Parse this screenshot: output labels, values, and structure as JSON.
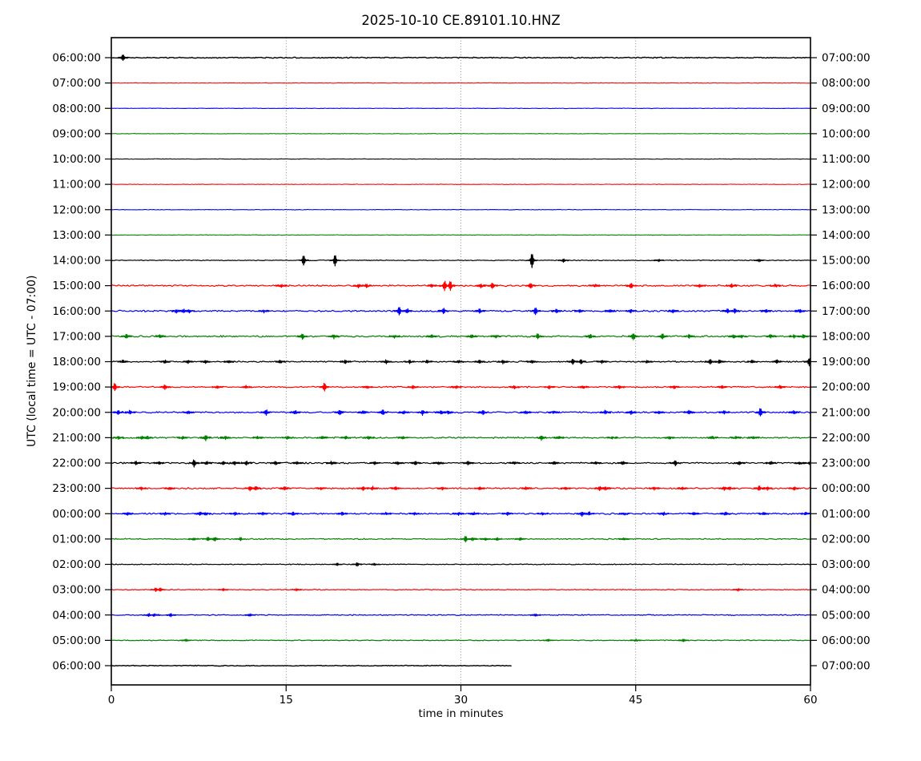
{
  "window": {
    "title": "2025-10-10 CE.89101.10.HNZ"
  },
  "chart_data": {
    "type": "line",
    "subtype": "helicorder-seismogram",
    "title": "2025-10-10 CE.89101.10.HNZ",
    "xlabel": "time in minutes",
    "ylabel": "UTC (local time = UTC - 07:00)",
    "xlim": [
      0,
      60
    ],
    "x_ticks": [
      0,
      15,
      30,
      45,
      60
    ],
    "grid_x_minutes": [
      15,
      30,
      45
    ],
    "grid_style": "dotted-vertical",
    "legend": "none",
    "colors": {
      "k": "#000000",
      "r": "#ff0000",
      "b": "#0000ff",
      "g": "#008000"
    },
    "rows_note": "25 hourly traces, one hour per line, color cycle black/red/blue/green; events = [minute, half-amplitude-px]",
    "rows": [
      {
        "left_label": "06:00:00",
        "right_label": "07:00:00",
        "color": "k",
        "noise": 0.55,
        "width": 1.4,
        "end": 60,
        "events": [
          [
            1.0,
            3.0
          ]
        ]
      },
      {
        "left_label": "07:00:00",
        "right_label": "08:00:00",
        "color": "r",
        "noise": 0.25,
        "width": 1.1,
        "end": 60,
        "events": []
      },
      {
        "left_label": "08:00:00",
        "right_label": "09:00:00",
        "color": "b",
        "noise": 0.25,
        "width": 1.1,
        "end": 60,
        "events": []
      },
      {
        "left_label": "09:00:00",
        "right_label": "10:00:00",
        "color": "g",
        "noise": 0.25,
        "width": 1.1,
        "end": 60,
        "events": []
      },
      {
        "left_label": "10:00:00",
        "right_label": "11:00:00",
        "color": "k",
        "noise": 0.25,
        "width": 1.1,
        "end": 60,
        "events": []
      },
      {
        "left_label": "11:00:00",
        "right_label": "12:00:00",
        "color": "r",
        "noise": 0.25,
        "width": 1.1,
        "end": 60,
        "events": []
      },
      {
        "left_label": "12:00:00",
        "right_label": "13:00:00",
        "color": "b",
        "noise": 0.25,
        "width": 1.1,
        "end": 60,
        "events": []
      },
      {
        "left_label": "13:00:00",
        "right_label": "14:00:00",
        "color": "g",
        "noise": 0.25,
        "width": 1.1,
        "end": 60,
        "events": []
      },
      {
        "left_label": "14:00:00",
        "right_label": "15:00:00",
        "color": "k",
        "noise": 0.45,
        "width": 1.2,
        "end": 60,
        "events": [
          [
            16.5,
            6.0
          ],
          [
            19.2,
            6.5
          ],
          [
            36.1,
            9.0
          ],
          [
            38.8,
            2.0
          ],
          [
            47.0,
            1.2
          ],
          [
            55.6,
            1.5
          ]
        ]
      },
      {
        "left_label": "15:00:00",
        "right_label": "16:00:00",
        "color": "r",
        "noise": 0.8,
        "width": 1.2,
        "end": 60,
        "events": [
          [
            14.6,
            1.5
          ],
          [
            21.2,
            2.0
          ],
          [
            21.9,
            2.0
          ],
          [
            27.5,
            1.5
          ],
          [
            28.6,
            5.5
          ],
          [
            29.1,
            5.5
          ],
          [
            31.7,
            2.2
          ],
          [
            32.7,
            3.0
          ],
          [
            36.0,
            3.0
          ],
          [
            41.5,
            1.5
          ],
          [
            44.6,
            3.2
          ],
          [
            50.5,
            1.5
          ],
          [
            53.2,
            2.0
          ],
          [
            57.0,
            1.5
          ]
        ]
      },
      {
        "left_label": "16:00:00",
        "right_label": "17:00:00",
        "color": "b",
        "noise": 0.8,
        "width": 1.2,
        "end": 60,
        "events": [
          [
            5.6,
            2.2
          ],
          [
            6.2,
            2.2
          ],
          [
            6.7,
            1.8
          ],
          [
            13.1,
            1.6
          ],
          [
            24.7,
            4.5
          ],
          [
            25.4,
            2.5
          ],
          [
            28.5,
            3.0
          ],
          [
            31.6,
            2.2
          ],
          [
            36.4,
            4.0
          ],
          [
            38.2,
            1.8
          ],
          [
            40.2,
            1.6
          ],
          [
            42.8,
            1.6
          ],
          [
            44.6,
            2.0
          ],
          [
            48.2,
            1.6
          ],
          [
            52.9,
            2.6
          ],
          [
            53.5,
            2.4
          ],
          [
            56.2,
            1.6
          ],
          [
            59.1,
            1.8
          ]
        ]
      },
      {
        "left_label": "17:00:00",
        "right_label": "18:00:00",
        "color": "g",
        "noise": 0.8,
        "width": 1.2,
        "end": 60,
        "events": [
          [
            1.3,
            2.4
          ],
          [
            4.2,
            1.6
          ],
          [
            16.4,
            3.0
          ],
          [
            19.1,
            2.6
          ],
          [
            24.3,
            1.6
          ],
          [
            27.5,
            1.4
          ],
          [
            30.9,
            1.6
          ],
          [
            33.0,
            1.4
          ],
          [
            36.6,
            2.6
          ],
          [
            41.1,
            2.4
          ],
          [
            44.8,
            3.8
          ],
          [
            47.3,
            3.6
          ],
          [
            49.6,
            2.0
          ],
          [
            53.4,
            2.0
          ],
          [
            54.1,
            1.8
          ],
          [
            56.6,
            2.0
          ],
          [
            58.6,
            1.6
          ],
          [
            59.4,
            2.0
          ]
        ]
      },
      {
        "left_label": "18:00:00",
        "right_label": "19:00:00",
        "color": "k",
        "noise": 0.7,
        "width": 1.2,
        "end": 60,
        "events": [
          [
            1.0,
            1.5
          ],
          [
            4.6,
            2.0
          ],
          [
            6.6,
            2.0
          ],
          [
            8.1,
            1.6
          ],
          [
            10.1,
            1.4
          ],
          [
            14.5,
            1.6
          ],
          [
            20.1,
            1.8
          ],
          [
            23.6,
            2.0
          ],
          [
            25.6,
            1.6
          ],
          [
            27.1,
            1.6
          ],
          [
            29.8,
            1.4
          ],
          [
            31.6,
            1.5
          ],
          [
            33.6,
            2.0
          ],
          [
            36.1,
            1.8
          ],
          [
            39.6,
            2.8
          ],
          [
            40.3,
            2.8
          ],
          [
            42.1,
            1.6
          ],
          [
            46.0,
            1.4
          ],
          [
            51.4,
            3.2
          ],
          [
            52.2,
            2.0
          ],
          [
            55.0,
            1.4
          ],
          [
            57.1,
            1.8
          ],
          [
            59.9,
            4.5
          ]
        ]
      },
      {
        "left_label": "19:00:00",
        "right_label": "20:00:00",
        "color": "r",
        "noise": 0.7,
        "width": 1.2,
        "end": 60,
        "events": [
          [
            0.3,
            4.5
          ],
          [
            4.6,
            2.8
          ],
          [
            9.1,
            1.6
          ],
          [
            11.6,
            1.5
          ],
          [
            18.3,
            4.5
          ],
          [
            22.0,
            1.4
          ],
          [
            25.9,
            2.0
          ],
          [
            29.6,
            1.5
          ],
          [
            34.6,
            1.5
          ],
          [
            37.6,
            1.8
          ],
          [
            40.5,
            1.4
          ],
          [
            43.6,
            1.8
          ],
          [
            48.3,
            1.8
          ],
          [
            52.4,
            1.4
          ],
          [
            57.4,
            1.8
          ]
        ]
      },
      {
        "left_label": "20:00:00",
        "right_label": "21:00:00",
        "color": "b",
        "noise": 0.8,
        "width": 1.2,
        "end": 60,
        "events": [
          [
            0.6,
            2.0
          ],
          [
            1.6,
            2.0
          ],
          [
            6.6,
            1.5
          ],
          [
            13.3,
            2.8
          ],
          [
            15.8,
            2.0
          ],
          [
            19.6,
            2.8
          ],
          [
            21.6,
            1.5
          ],
          [
            23.3,
            3.2
          ],
          [
            25.1,
            1.5
          ],
          [
            26.7,
            3.2
          ],
          [
            28.3,
            2.0
          ],
          [
            28.9,
            1.8
          ],
          [
            31.9,
            2.8
          ],
          [
            35.6,
            1.5
          ],
          [
            38.0,
            1.4
          ],
          [
            42.4,
            2.0
          ],
          [
            44.6,
            1.8
          ],
          [
            47.0,
            1.4
          ],
          [
            49.6,
            1.8
          ],
          [
            52.6,
            1.8
          ],
          [
            55.7,
            4.8
          ],
          [
            58.6,
            1.5
          ]
        ]
      },
      {
        "left_label": "21:00:00",
        "right_label": "22:00:00",
        "color": "g",
        "noise": 0.75,
        "width": 1.2,
        "end": 60,
        "events": [
          [
            0.6,
            1.8
          ],
          [
            2.6,
            1.4
          ],
          [
            3.1,
            1.4
          ],
          [
            6.1,
            1.5
          ],
          [
            8.1,
            3.2
          ],
          [
            9.8,
            1.8
          ],
          [
            12.6,
            1.5
          ],
          [
            15.1,
            1.4
          ],
          [
            18.1,
            1.4
          ],
          [
            20.1,
            1.8
          ],
          [
            22.1,
            1.4
          ],
          [
            25.0,
            1.2
          ],
          [
            36.9,
            2.8
          ],
          [
            38.4,
            1.5
          ],
          [
            43.0,
            1.2
          ],
          [
            47.9,
            1.5
          ],
          [
            51.6,
            1.4
          ],
          [
            53.6,
            1.4
          ],
          [
            55.1,
            1.4
          ]
        ]
      },
      {
        "left_label": "22:00:00",
        "right_label": "23:00:00",
        "color": "k",
        "noise": 0.75,
        "width": 1.2,
        "end": 60,
        "events": [
          [
            2.1,
            1.5
          ],
          [
            4.1,
            1.4
          ],
          [
            7.1,
            4.2
          ],
          [
            8.2,
            1.8
          ],
          [
            9.6,
            1.8
          ],
          [
            10.6,
            1.8
          ],
          [
            11.6,
            1.8
          ],
          [
            14.1,
            1.8
          ],
          [
            16.0,
            1.4
          ],
          [
            18.9,
            1.8
          ],
          [
            22.6,
            1.8
          ],
          [
            24.6,
            1.8
          ],
          [
            26.1,
            1.6
          ],
          [
            28.1,
            1.4
          ],
          [
            30.6,
            1.8
          ],
          [
            34.6,
            1.4
          ],
          [
            38.0,
            1.2
          ],
          [
            41.6,
            1.4
          ],
          [
            43.9,
            1.8
          ],
          [
            48.4,
            3.2
          ],
          [
            53.9,
            1.8
          ],
          [
            56.6,
            1.8
          ],
          [
            59.1,
            1.4
          ],
          [
            59.9,
            1.5
          ]
        ]
      },
      {
        "left_label": "23:00:00",
        "right_label": "00:00:00",
        "color": "r",
        "noise": 0.75,
        "width": 1.2,
        "end": 60,
        "events": [
          [
            2.6,
            1.4
          ],
          [
            5.0,
            1.2
          ],
          [
            11.9,
            2.8
          ],
          [
            12.4,
            2.0
          ],
          [
            14.9,
            1.8
          ],
          [
            18.0,
            1.2
          ],
          [
            21.6,
            2.2
          ],
          [
            22.4,
            2.2
          ],
          [
            24.4,
            1.8
          ],
          [
            28.4,
            1.5
          ],
          [
            31.6,
            1.4
          ],
          [
            35.6,
            1.4
          ],
          [
            39.0,
            1.2
          ],
          [
            41.9,
            2.5
          ],
          [
            42.4,
            1.8
          ],
          [
            46.6,
            1.4
          ],
          [
            49.0,
            1.2
          ],
          [
            52.6,
            1.8
          ],
          [
            53.1,
            1.6
          ],
          [
            55.6,
            2.5
          ],
          [
            56.3,
            1.8
          ],
          [
            58.6,
            1.8
          ]
        ]
      },
      {
        "left_label": "00:00:00",
        "right_label": "01:00:00",
        "color": "b",
        "noise": 0.75,
        "width": 1.2,
        "end": 60,
        "events": [
          [
            1.4,
            1.5
          ],
          [
            4.6,
            1.4
          ],
          [
            7.6,
            1.8
          ],
          [
            8.1,
            1.6
          ],
          [
            10.6,
            1.4
          ],
          [
            13.0,
            1.2
          ],
          [
            15.6,
            1.8
          ],
          [
            19.8,
            1.8
          ],
          [
            23.6,
            1.5
          ],
          [
            26.0,
            1.2
          ],
          [
            29.8,
            1.5
          ],
          [
            31.1,
            1.4
          ],
          [
            34.0,
            1.2
          ],
          [
            37.0,
            1.2
          ],
          [
            40.4,
            2.6
          ],
          [
            41.0,
            2.2
          ],
          [
            44.0,
            1.3
          ],
          [
            47.4,
            1.8
          ],
          [
            50.0,
            1.2
          ],
          [
            52.7,
            1.8
          ],
          [
            56.0,
            1.2
          ],
          [
            59.6,
            1.4
          ]
        ]
      },
      {
        "left_label": "01:00:00",
        "right_label": "02:00:00",
        "color": "g",
        "noise": 0.6,
        "width": 1.2,
        "end": 60,
        "events": [
          [
            7.1,
            1.4
          ],
          [
            8.3,
            2.2
          ],
          [
            8.9,
            2.2
          ],
          [
            11.1,
            1.8
          ],
          [
            30.4,
            3.6
          ],
          [
            31.0,
            1.6
          ],
          [
            32.1,
            1.4
          ],
          [
            33.1,
            1.4
          ],
          [
            35.1,
            1.3
          ],
          [
            44.0,
            1.0
          ]
        ]
      },
      {
        "left_label": "02:00:00",
        "right_label": "03:00:00",
        "color": "k",
        "noise": 0.45,
        "width": 1.2,
        "end": 60,
        "events": [
          [
            19.4,
            1.4
          ],
          [
            21.1,
            2.2
          ],
          [
            22.6,
            1.2
          ]
        ]
      },
      {
        "left_label": "03:00:00",
        "right_label": "04:00:00",
        "color": "r",
        "noise": 0.45,
        "width": 1.2,
        "end": 60,
        "events": [
          [
            3.8,
            1.8
          ],
          [
            4.2,
            1.8
          ],
          [
            9.6,
            1.4
          ],
          [
            15.9,
            1.0
          ],
          [
            53.8,
            1.4
          ]
        ]
      },
      {
        "left_label": "04:00:00",
        "right_label": "05:00:00",
        "color": "b",
        "noise": 0.5,
        "width": 1.2,
        "end": 60,
        "events": [
          [
            3.2,
            1.8
          ],
          [
            3.7,
            1.8
          ],
          [
            5.1,
            1.8
          ],
          [
            11.9,
            1.4
          ],
          [
            36.4,
            1.4
          ]
        ]
      },
      {
        "left_label": "05:00:00",
        "right_label": "06:00:00",
        "color": "g",
        "noise": 0.45,
        "width": 1.2,
        "end": 60,
        "events": [
          [
            6.4,
            1.4
          ],
          [
            37.5,
            1.0
          ],
          [
            45.0,
            1.0
          ],
          [
            49.1,
            1.3
          ]
        ]
      },
      {
        "left_label": "06:00:00",
        "right_label": "07:00:00",
        "color": "k",
        "noise": 0.4,
        "width": 1.4,
        "end": 34.3,
        "events": []
      }
    ]
  }
}
